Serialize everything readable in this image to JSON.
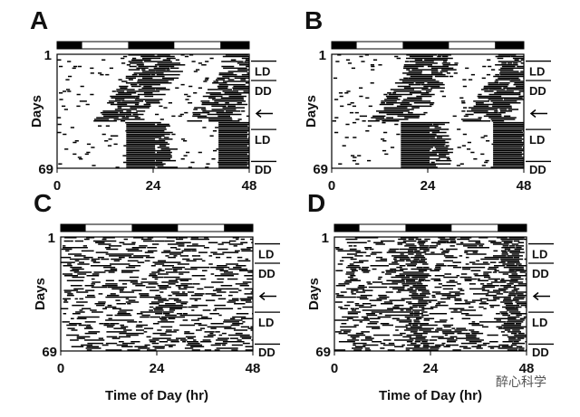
{
  "panels": [
    {
      "label": "A",
      "y_start": "1",
      "y_end": "69",
      "y_title": "Days",
      "x_ticks": [
        "0",
        "24",
        "48"
      ],
      "annotations": [
        "LD",
        "DD",
        "LD",
        "DD"
      ]
    },
    {
      "label": "B",
      "y_start": "1",
      "y_end": "69",
      "y_title": "Days",
      "x_ticks": [
        "0",
        "24",
        "48"
      ],
      "annotations": [
        "LD",
        "DD",
        "LD",
        "DD"
      ]
    },
    {
      "label": "C",
      "y_start": "1",
      "y_end": "69",
      "y_title": "Days",
      "x_ticks": [
        "0",
        "24",
        "48"
      ],
      "annotations": [
        "LD",
        "DD",
        "LD",
        "DD"
      ],
      "x_title": "Time of Day (hr)"
    },
    {
      "label": "D",
      "y_start": "1",
      "y_end": "69",
      "y_title": "Days",
      "x_ticks": [
        "0",
        "24",
        "48"
      ],
      "annotations": [
        "LD",
        "DD",
        "LD",
        "DD"
      ],
      "x_title": "Time of Day (hr)"
    }
  ],
  "watermark": "醉心科学"
}
